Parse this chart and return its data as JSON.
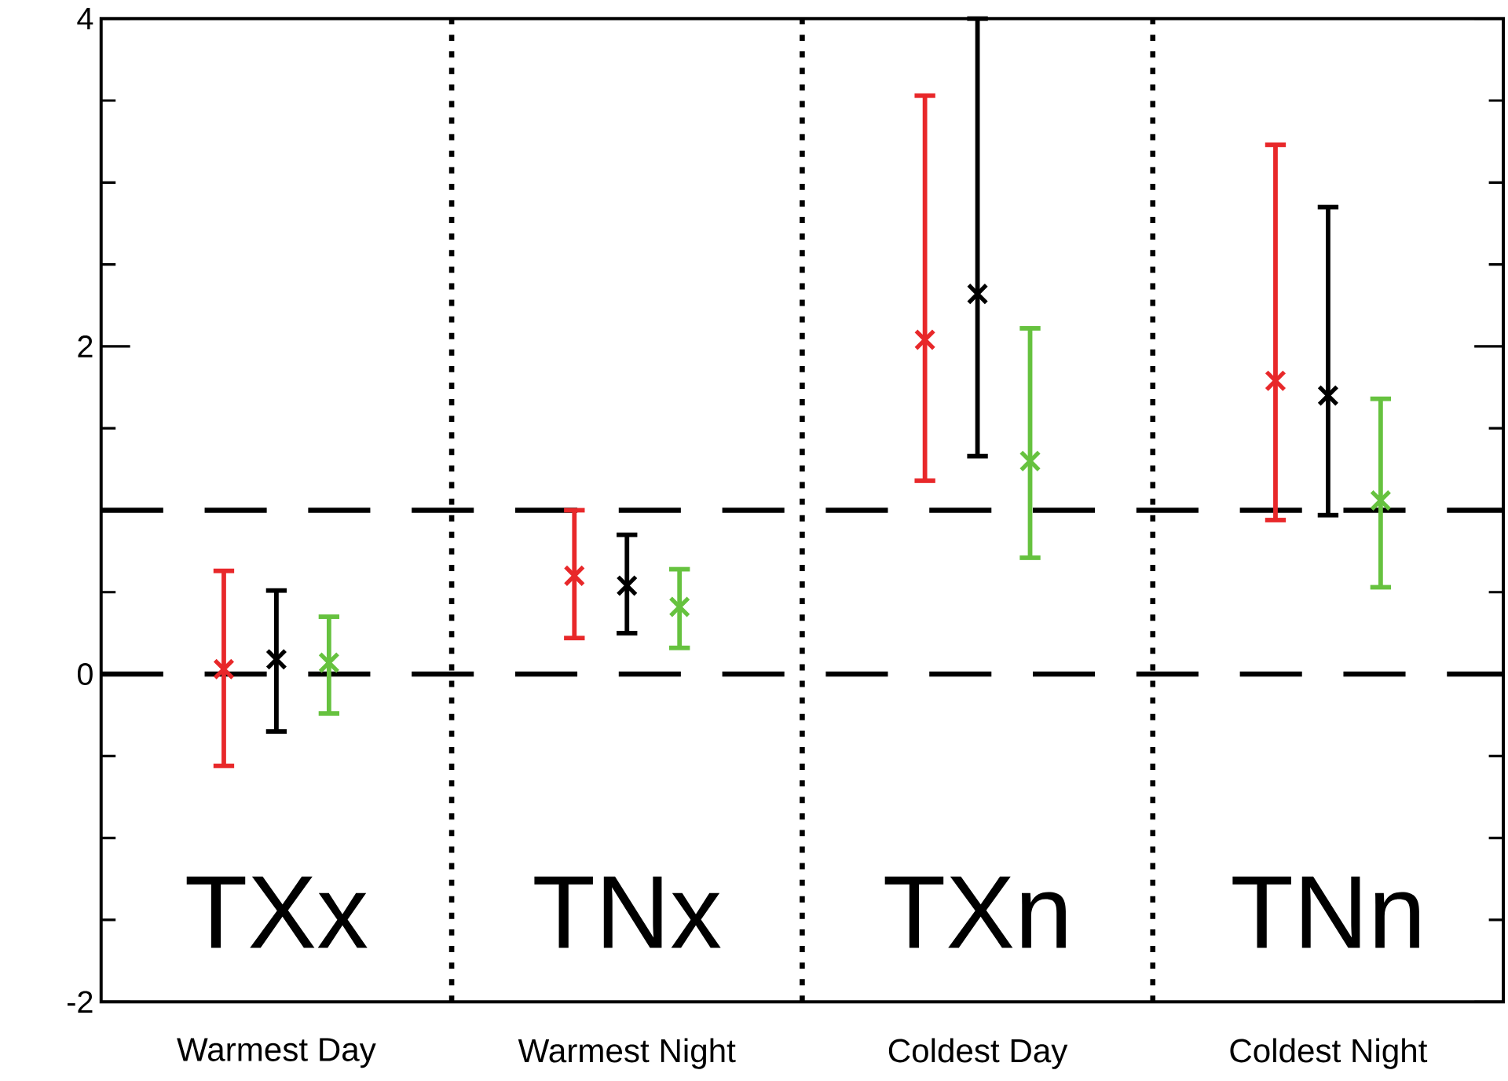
{
  "chart_data": {
    "type": "scatter",
    "categories": [
      "Warmest Day",
      "Warmest Night",
      "Coldest Day",
      "Coldest Night"
    ],
    "series": [
      {
        "color": "#e8282a",
        "values": [
          0.03,
          0.6,
          2.04,
          1.79
        ],
        "errors": [
          [
            -0.56,
            0.63
          ],
          [
            0.22,
            1.0
          ],
          [
            1.18,
            3.53
          ],
          [
            0.94,
            3.23
          ]
        ]
      },
      {
        "color": "#000000",
        "values": [
          0.09,
          0.54,
          2.32,
          1.7
        ],
        "errors": [
          [
            -0.35,
            0.51
          ],
          [
            0.25,
            0.85
          ],
          [
            1.33,
            4.0
          ],
          [
            0.97,
            2.85
          ]
        ]
      },
      {
        "color": "#66c23f",
        "values": [
          0.07,
          0.41,
          1.3,
          1.06
        ],
        "errors": [
          [
            -0.24,
            0.35
          ],
          [
            0.16,
            0.64
          ],
          [
            0.71,
            2.11
          ],
          [
            0.53,
            1.68
          ]
        ]
      }
    ],
    "ylim": [
      -2,
      4
    ],
    "yticks": [
      -2,
      0,
      2,
      4
    ],
    "marker": "cross",
    "ref_lines": [
      {
        "axis": "y",
        "value": 0,
        "line_style": "dashed",
        "color": "#000000"
      },
      {
        "axis": "y",
        "value": 1,
        "line_style": "dashed",
        "color": "#000000"
      }
    ],
    "annotations": [
      "TXx",
      "TNx",
      "TXn",
      "TNn"
    ]
  }
}
